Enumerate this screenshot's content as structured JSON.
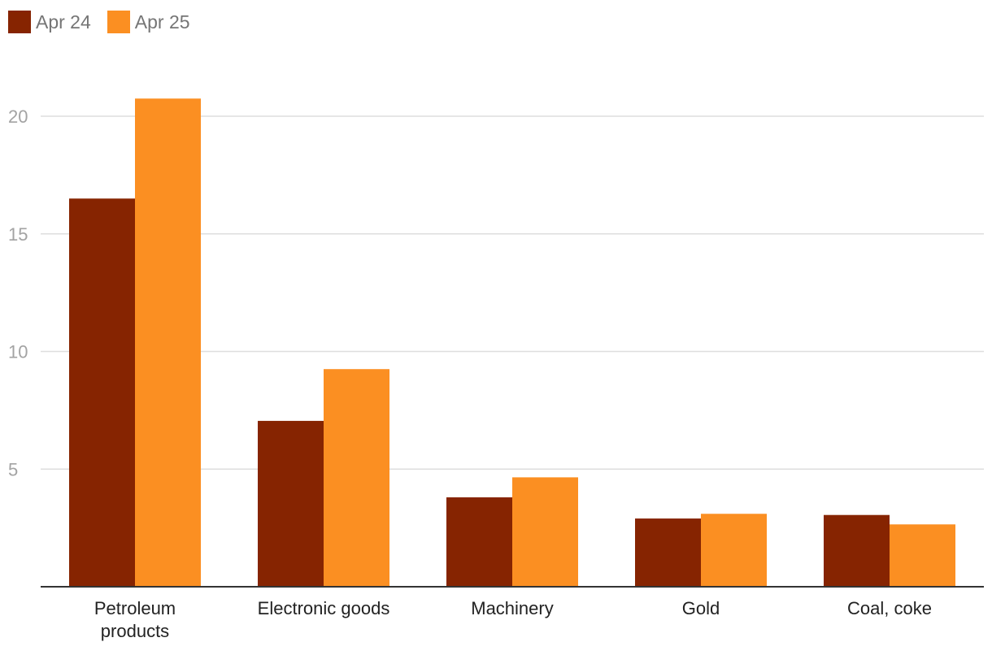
{
  "chart_data": {
    "type": "bar",
    "categories": [
      "Petroleum products",
      "Electronic goods",
      "Machinery",
      "Gold",
      "Coal, coke"
    ],
    "series": [
      {
        "name": "Apr 24",
        "values": [
          16.5,
          7.05,
          3.8,
          2.9,
          3.05
        ],
        "color": "#862401"
      },
      {
        "name": "Apr 25",
        "values": [
          20.75,
          9.25,
          4.65,
          3.1,
          2.65
        ],
        "color": "#fb8f22"
      }
    ],
    "yticks": [
      5,
      10,
      15,
      20
    ],
    "ylim": [
      0,
      20.75
    ],
    "grid": true,
    "legend_position": "top-left"
  }
}
